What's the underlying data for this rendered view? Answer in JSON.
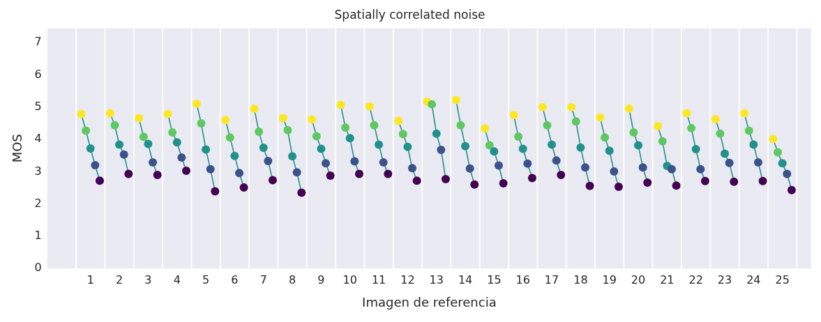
{
  "chart_data": {
    "type": "line",
    "title": "Spatially correlated noise",
    "xlabel": "Imagen de referencia",
    "ylabel": "MOS",
    "xlim": [
      -0.5,
      26
    ],
    "xticks": [
      1,
      2,
      3,
      4,
      5,
      6,
      7,
      8,
      9,
      10,
      11,
      12,
      13,
      14,
      15,
      16,
      17,
      18,
      19,
      20,
      21,
      22,
      23,
      24,
      25
    ],
    "ylim": [
      0,
      7.45
    ],
    "yticks": [
      0,
      1,
      2,
      3,
      4,
      5,
      6,
      7
    ],
    "grid": false,
    "legend": false,
    "marker": "circle",
    "line_style": "solid",
    "ref_lines": [
      {
        "axis": "x",
        "value": 0.5,
        "color": "#ffffff"
      },
      {
        "axis": "x",
        "value": 1.5,
        "color": "#ffffff"
      },
      {
        "axis": "x",
        "value": 2.5,
        "color": "#ffffff"
      },
      {
        "axis": "x",
        "value": 3.5,
        "color": "#ffffff"
      },
      {
        "axis": "x",
        "value": 4.5,
        "color": "#ffffff"
      },
      {
        "axis": "x",
        "value": 5.5,
        "color": "#ffffff"
      },
      {
        "axis": "x",
        "value": 6.5,
        "color": "#ffffff"
      },
      {
        "axis": "x",
        "value": 7.5,
        "color": "#ffffff"
      },
      {
        "axis": "x",
        "value": 8.5,
        "color": "#ffffff"
      },
      {
        "axis": "x",
        "value": 9.5,
        "color": "#ffffff"
      },
      {
        "axis": "x",
        "value": 10.5,
        "color": "#ffffff"
      },
      {
        "axis": "x",
        "value": 11.5,
        "color": "#ffffff"
      },
      {
        "axis": "x",
        "value": 12.5,
        "color": "#ffffff"
      },
      {
        "axis": "x",
        "value": 13.5,
        "color": "#ffffff"
      },
      {
        "axis": "x",
        "value": 14.5,
        "color": "#ffffff"
      },
      {
        "axis": "x",
        "value": 15.5,
        "color": "#ffffff"
      },
      {
        "axis": "x",
        "value": 16.5,
        "color": "#ffffff"
      },
      {
        "axis": "x",
        "value": 17.5,
        "color": "#ffffff"
      },
      {
        "axis": "x",
        "value": 18.5,
        "color": "#ffffff"
      },
      {
        "axis": "x",
        "value": 19.5,
        "color": "#ffffff"
      },
      {
        "axis": "x",
        "value": 20.5,
        "color": "#ffffff"
      },
      {
        "axis": "x",
        "value": 21.5,
        "color": "#ffffff"
      },
      {
        "axis": "x",
        "value": 22.5,
        "color": "#ffffff"
      },
      {
        "axis": "x",
        "value": 23.5,
        "color": "#ffffff"
      },
      {
        "axis": "x",
        "value": 24.5,
        "color": "#ffffff"
      },
      {
        "axis": "x",
        "value": 25.5,
        "color": "#ffffff"
      }
    ],
    "series": [
      {
        "x": [
          0.68,
          0.84,
          1,
          1.16,
          1.32
        ],
        "values": [
          4.79,
          4.27,
          3.72,
          3.2,
          2.72
        ],
        "color": "#21918c",
        "colors": [
          "#fde725",
          "#5ec962",
          "#21918c",
          "#3b528b",
          "#440154"
        ]
      },
      {
        "x": [
          1.68,
          1.84,
          2,
          2.16,
          2.32
        ],
        "values": [
          4.81,
          4.44,
          3.84,
          3.53,
          2.93
        ],
        "color": "#21918c",
        "colors": [
          "#fde725",
          "#5ec962",
          "#21918c",
          "#3b528b",
          "#440154"
        ]
      },
      {
        "x": [
          2.68,
          2.84,
          3,
          3.16,
          3.32
        ],
        "values": [
          4.66,
          4.08,
          3.86,
          3.29,
          2.9
        ],
        "color": "#21918c",
        "colors": [
          "#fde725",
          "#5ec962",
          "#21918c",
          "#3b528b",
          "#440154"
        ]
      },
      {
        "x": [
          3.68,
          3.84,
          4,
          4.16,
          4.32
        ],
        "values": [
          4.79,
          4.22,
          3.91,
          3.44,
          3.03
        ],
        "color": "#21918c",
        "colors": [
          "#fde725",
          "#5ec962",
          "#21918c",
          "#3b528b",
          "#440154"
        ]
      },
      {
        "x": [
          4.68,
          4.84,
          5,
          5.16,
          5.32
        ],
        "values": [
          5.11,
          4.5,
          3.69,
          3.08,
          2.39
        ],
        "color": "#21918c",
        "colors": [
          "#fde725",
          "#5ec962",
          "#21918c",
          "#3b528b",
          "#440154"
        ]
      },
      {
        "x": [
          5.68,
          5.84,
          6,
          6.16,
          6.32
        ],
        "values": [
          4.6,
          4.06,
          3.49,
          2.96,
          2.51
        ],
        "color": "#21918c",
        "colors": [
          "#fde725",
          "#5ec962",
          "#21918c",
          "#3b528b",
          "#440154"
        ]
      },
      {
        "x": [
          6.68,
          6.84,
          7,
          7.16,
          7.32
        ],
        "values": [
          4.95,
          4.24,
          3.74,
          3.33,
          2.74
        ],
        "color": "#21918c",
        "colors": [
          "#fde725",
          "#5ec962",
          "#21918c",
          "#3b528b",
          "#440154"
        ]
      },
      {
        "x": [
          7.68,
          7.84,
          8,
          8.16,
          8.32
        ],
        "values": [
          4.66,
          4.29,
          3.48,
          2.98,
          2.35
        ],
        "color": "#21918c",
        "colors": [
          "#fde725",
          "#5ec962",
          "#21918c",
          "#3b528b",
          "#440154"
        ]
      },
      {
        "x": [
          8.68,
          8.84,
          9,
          9.16,
          9.32
        ],
        "values": [
          4.62,
          4.1,
          3.71,
          3.26,
          2.88
        ],
        "color": "#21918c",
        "colors": [
          "#fde725",
          "#5ec962",
          "#21918c",
          "#3b528b",
          "#440154"
        ]
      },
      {
        "x": [
          9.68,
          9.84,
          10,
          10.16,
          10.32
        ],
        "values": [
          5.07,
          4.37,
          4.04,
          3.32,
          2.93
        ],
        "color": "#21918c",
        "colors": [
          "#fde725",
          "#5ec962",
          "#21918c",
          "#3b528b",
          "#440154"
        ]
      },
      {
        "x": [
          10.68,
          10.84,
          11,
          11.16,
          11.32
        ],
        "values": [
          5.02,
          4.44,
          3.84,
          3.29,
          2.93
        ],
        "color": "#21918c",
        "colors": [
          "#fde725",
          "#5ec962",
          "#21918c",
          "#3b528b",
          "#440154"
        ]
      },
      {
        "x": [
          11.68,
          11.84,
          12,
          12.16,
          12.32
        ],
        "values": [
          4.58,
          4.17,
          3.77,
          3.11,
          2.72
        ],
        "color": "#21918c",
        "colors": [
          "#fde725",
          "#5ec962",
          "#21918c",
          "#3b528b",
          "#440154"
        ]
      },
      {
        "x": [
          12.68,
          12.84,
          13,
          13.16,
          13.32
        ],
        "values": [
          5.17,
          5.09,
          4.18,
          3.68,
          2.77
        ],
        "color": "#21918c",
        "colors": [
          "#fde725",
          "#5ec962",
          "#21918c",
          "#3b528b",
          "#440154"
        ]
      },
      {
        "x": [
          13.68,
          13.84,
          14,
          14.16,
          14.32
        ],
        "values": [
          5.22,
          4.44,
          3.79,
          3.1,
          2.6
        ],
        "color": "#21918c",
        "colors": [
          "#fde725",
          "#5ec962",
          "#21918c",
          "#3b528b",
          "#440154"
        ]
      },
      {
        "x": [
          14.68,
          14.84,
          15,
          15.16,
          15.32
        ],
        "values": [
          4.34,
          3.82,
          3.63,
          3.19,
          2.64
        ],
        "color": "#21918c",
        "colors": [
          "#fde725",
          "#5ec962",
          "#21918c",
          "#3b528b",
          "#440154"
        ]
      },
      {
        "x": [
          15.68,
          15.84,
          16,
          16.16,
          16.32
        ],
        "values": [
          4.76,
          4.09,
          3.71,
          3.25,
          2.8
        ],
        "color": "#21918c",
        "colors": [
          "#fde725",
          "#5ec962",
          "#21918c",
          "#3b528b",
          "#440154"
        ]
      },
      {
        "x": [
          16.68,
          16.84,
          17,
          17.16,
          17.32
        ],
        "values": [
          5,
          4.44,
          3.84,
          3.35,
          2.9
        ],
        "color": "#21918c",
        "colors": [
          "#fde725",
          "#5ec962",
          "#21918c",
          "#3b528b",
          "#440154"
        ]
      },
      {
        "x": [
          17.68,
          17.84,
          18,
          18.16,
          18.32
        ],
        "values": [
          5,
          4.56,
          3.75,
          3.13,
          2.56
        ],
        "color": "#21918c",
        "colors": [
          "#fde725",
          "#5ec962",
          "#21918c",
          "#3b528b",
          "#440154"
        ]
      },
      {
        "x": [
          18.68,
          18.84,
          19,
          19.16,
          19.32
        ],
        "values": [
          4.68,
          4.06,
          3.65,
          3.01,
          2.53
        ],
        "color": "#21918c",
        "colors": [
          "#fde725",
          "#5ec962",
          "#21918c",
          "#3b528b",
          "#440154"
        ]
      },
      {
        "x": [
          19.68,
          19.84,
          20,
          20.16,
          20.32
        ],
        "values": [
          4.96,
          4.22,
          3.82,
          3.13,
          2.66
        ],
        "color": "#21918c",
        "colors": [
          "#fde725",
          "#5ec962",
          "#21918c",
          "#3b528b",
          "#440154"
        ]
      },
      {
        "x": [
          20.68,
          20.84,
          21,
          21.16,
          21.32
        ],
        "values": [
          4.41,
          3.94,
          3.18,
          3.08,
          2.57
        ],
        "color": "#21918c",
        "colors": [
          "#fde725",
          "#5ec962",
          "#21918c",
          "#3b528b",
          "#440154"
        ]
      },
      {
        "x": [
          21.68,
          21.84,
          22,
          22.16,
          22.32
        ],
        "values": [
          4.81,
          4.35,
          3.7,
          3.08,
          2.71
        ],
        "color": "#21918c",
        "colors": [
          "#fde725",
          "#5ec962",
          "#21918c",
          "#3b528b",
          "#440154"
        ]
      },
      {
        "x": [
          22.68,
          22.84,
          23,
          23.16,
          23.32
        ],
        "values": [
          4.63,
          4.18,
          3.56,
          3.27,
          2.69
        ],
        "color": "#21918c",
        "colors": [
          "#fde725",
          "#5ec962",
          "#21918c",
          "#3b528b",
          "#440154"
        ]
      },
      {
        "x": [
          23.68,
          23.84,
          24,
          24.16,
          24.32
        ],
        "values": [
          4.81,
          4.27,
          3.84,
          3.29,
          2.71
        ],
        "color": "#21918c",
        "colors": [
          "#fde725",
          "#5ec962",
          "#21918c",
          "#3b528b",
          "#440154"
        ]
      },
      {
        "x": [
          24.68,
          24.84,
          25,
          25.16,
          25.32
        ],
        "values": [
          4.01,
          3.6,
          3.26,
          2.93,
          2.43
        ],
        "color": "#21918c",
        "colors": [
          "#fde725",
          "#5ec962",
          "#21918c",
          "#3b528b",
          "#440154"
        ]
      }
    ]
  }
}
